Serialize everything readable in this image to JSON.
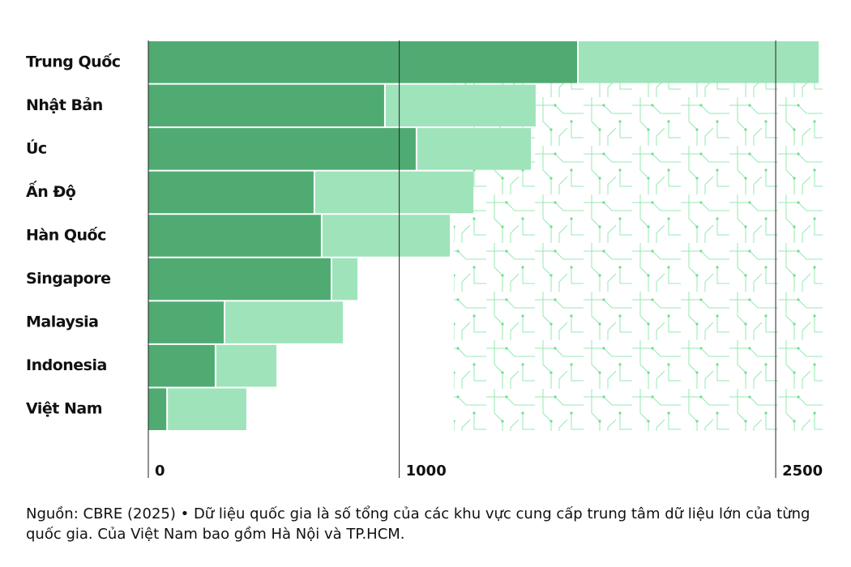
{
  "chart_data": {
    "type": "stacked-bar-horizontal",
    "categories": [
      "Trung Quốc",
      "Nhật Bản",
      "Úc",
      "Ấn Độ",
      "Hàn Quốc",
      "Singapore",
      "Malaysia",
      "Indonesia",
      "Việt Nam"
    ],
    "series": [
      {
        "color": "#4fab72",
        "values": [
          1715,
          946,
          1072,
          665,
          694,
          733,
          307,
          271,
          78
        ]
      },
      {
        "color": "#9fe3bb",
        "values": [
          963,
          604,
          459,
          637,
          514,
          107,
          475,
          246,
          319
        ]
      }
    ],
    "xlim": [
      0,
      2700
    ],
    "xticks": [
      0,
      1000,
      2500
    ],
    "highlight_index": 8,
    "highlight_color": "#5cc98a",
    "note": "Nguồn: CBRE (2025) • Dữ liệu quốc gia là số tổng của các khu vực cung cấp trung tâm dữ liệu lớn của từng quốc gia. Của Việt Nam bao gồm Hà Nội và TP.HCM."
  }
}
